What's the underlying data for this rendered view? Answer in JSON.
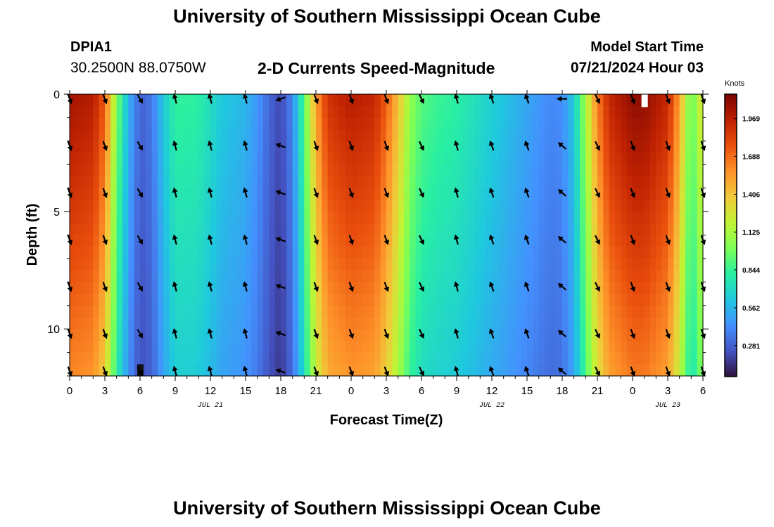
{
  "header": {
    "title": "University of Southern Mississippi Ocean Cube",
    "station_id": "DPIA1",
    "coords": "30.2500N  88.0750W",
    "chart_title": "2-D Currents Speed-Magnitude",
    "model_start_label": "Model Start Time",
    "model_start_value": "07/21/2024 Hour 03"
  },
  "footer": {
    "title": "University of Southern Mississippi Ocean Cube"
  },
  "colors": {
    "scale": [
      "#30123b",
      "#4454c4",
      "#4490fe",
      "#1fc8de",
      "#29efa2",
      "#7dff56",
      "#c1f334",
      "#f1ca3a",
      "#fe922a",
      "#ea4f0d",
      "#be2102",
      "#7a0403"
    ]
  },
  "chart_data": {
    "type": "heatmap",
    "title": "2-D Currents Speed-Magnitude",
    "xlabel": "Forecast Time(Z)",
    "ylabel": "Depth (ft)",
    "units": "Knots",
    "x_hours_from_jul21_00": [
      0,
      54
    ],
    "ylim": [
      0,
      12
    ],
    "x_tick_labels": [
      "0",
      "3",
      "6",
      "9",
      "12",
      "15",
      "18",
      "21",
      "0",
      "3",
      "6",
      "9",
      "12",
      "15",
      "18",
      "21",
      "0",
      "3",
      "6"
    ],
    "y_ticks": [
      0,
      5,
      10
    ],
    "date_labels": [
      {
        "text": "JUL 21",
        "hour": 12
      },
      {
        "text": "JUL 22",
        "hour": 36
      },
      {
        "text": "JUL 23",
        "hour": 51
      }
    ],
    "colorbar_ticks": [
      0.281,
      0.562,
      0.844,
      1.125,
      1.406,
      1.688,
      1.969
    ],
    "colorbar_tick_labels": [
      "0.281",
      "0.562",
      "0.844",
      "1.125",
      "1.406",
      "1.688",
      "1.969"
    ],
    "colorbar_range": [
      0.05,
      2.15
    ],
    "speed_profile": {
      "hours": [
        0,
        2,
        3,
        4,
        5,
        6,
        7,
        8,
        9,
        11,
        13,
        15,
        16,
        17,
        18,
        19,
        20,
        21,
        22,
        24,
        26,
        27,
        28,
        29,
        30,
        31,
        33,
        36,
        39,
        41,
        42,
        43,
        44,
        45,
        46,
        48,
        49,
        51,
        52,
        53,
        54
      ],
      "knots": [
        2.0,
        1.95,
        1.7,
        1.0,
        0.55,
        0.28,
        0.35,
        0.62,
        0.82,
        0.8,
        0.62,
        0.55,
        0.45,
        0.3,
        0.2,
        0.4,
        0.9,
        1.5,
        1.85,
        1.95,
        1.9,
        1.7,
        1.4,
        1.05,
        0.9,
        0.85,
        0.8,
        0.65,
        0.5,
        0.4,
        0.42,
        0.62,
        1.1,
        1.6,
        1.9,
        2.05,
        2.05,
        1.9,
        1.5,
        0.9,
        1.3
      ]
    },
    "arrow_depths_ft": [
      0.2,
      2.2,
      4.2,
      6.2,
      8.2,
      10.2,
      11.8
    ],
    "arrow_hours": [
      0,
      3,
      6,
      9,
      12,
      15,
      18,
      21,
      24,
      27,
      30,
      33,
      36,
      39,
      42,
      45,
      48,
      51,
      54
    ],
    "arrow_direction_deg_by_hour": [
      -20,
      -20,
      -30,
      165,
      165,
      165,
      110,
      -20,
      -20,
      -20,
      -25,
      165,
      160,
      160,
      130,
      -25,
      -20,
      -20,
      -20
    ],
    "arrow_surface_direction_deg_by_hour": [
      -20,
      -20,
      -30,
      165,
      165,
      165,
      70,
      -20,
      -20,
      -20,
      -25,
      165,
      160,
      160,
      90,
      -25,
      -20,
      -20,
      -20
    ],
    "missing_cells": [
      {
        "hour": 6,
        "depth_from": 11.5,
        "depth_to": 12,
        "color": "#111111"
      },
      {
        "hour": 49,
        "depth_from": 0,
        "depth_to": 0.55,
        "color": "#ffffff"
      }
    ]
  }
}
